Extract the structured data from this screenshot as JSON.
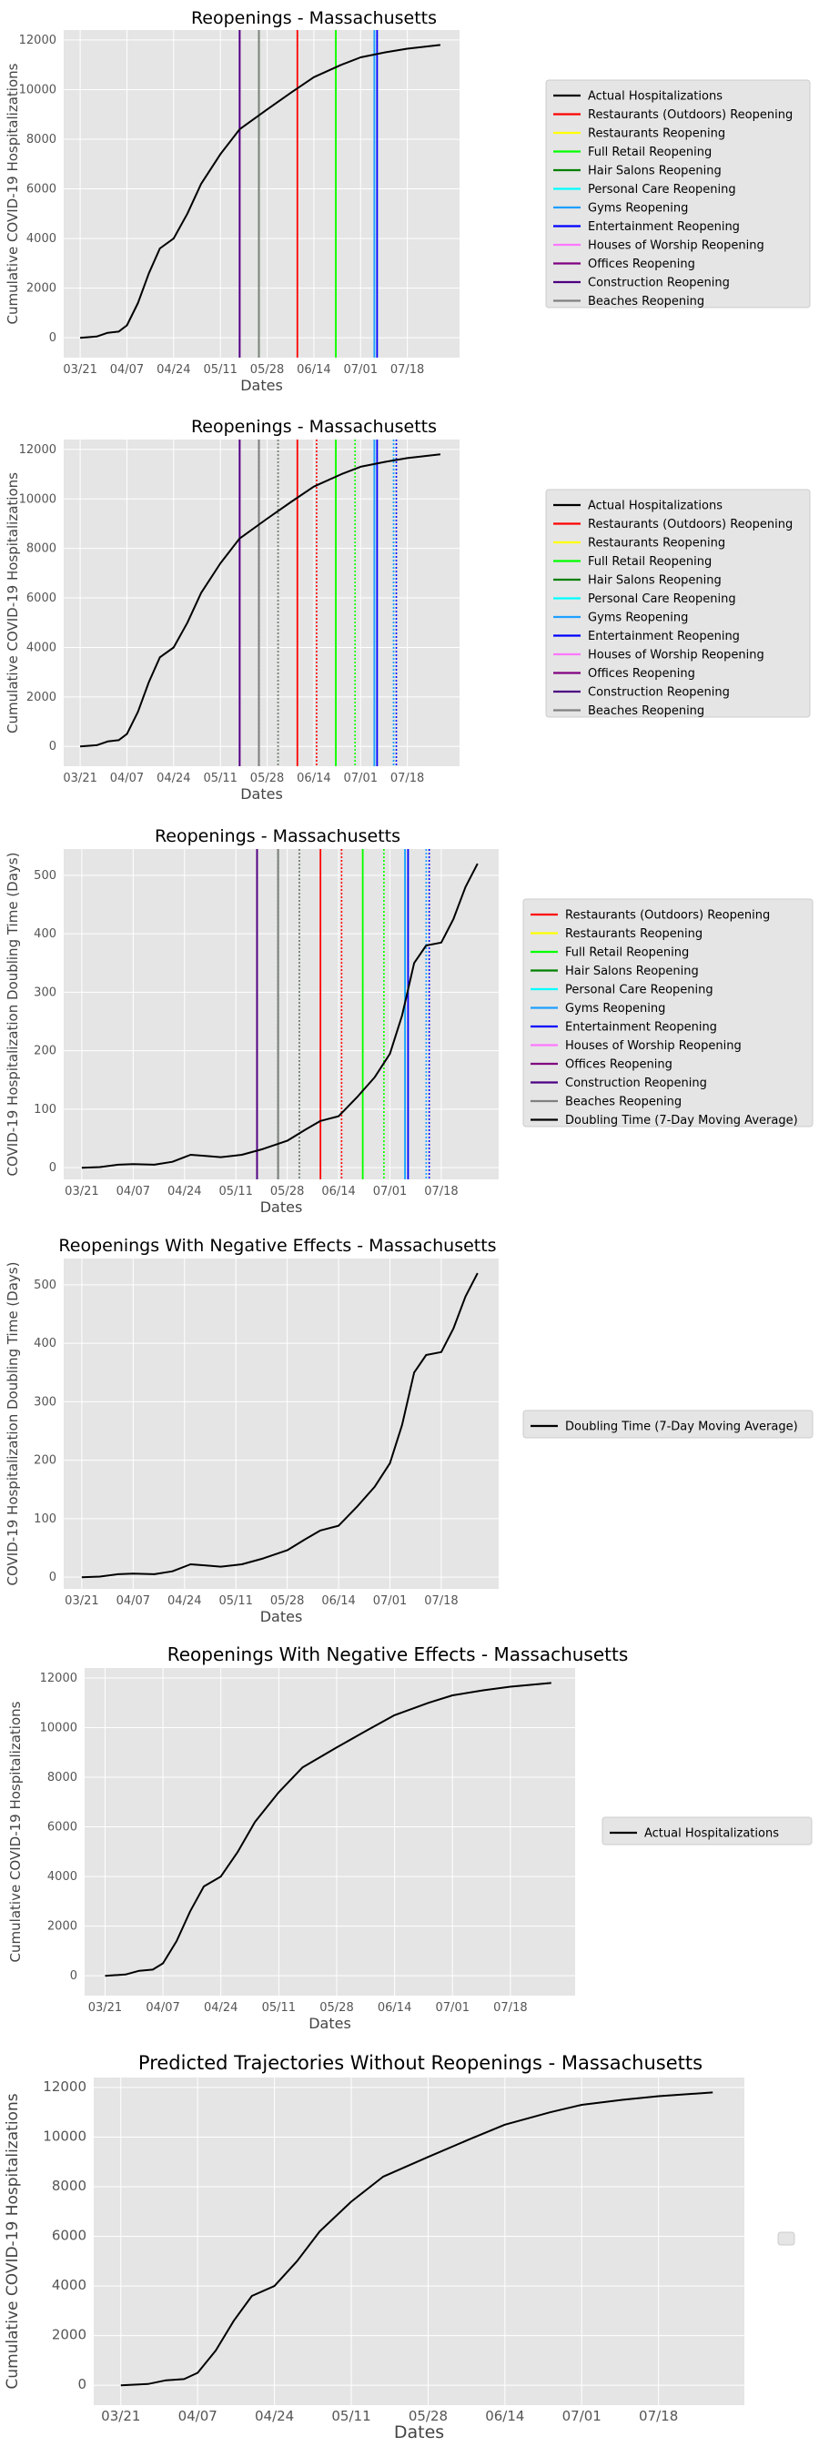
{
  "colors": {
    "panel_bg": "#e5e5e5",
    "grid": "#ffffff",
    "line": "#000000",
    "legend_bg": "#e5e5e5",
    "legend_border": "#cccccc"
  },
  "reopening_series": [
    {
      "name": "Restaurants (Outdoors) Reopening",
      "color": "#ff0000",
      "date": "2020-06-08"
    },
    {
      "name": "Restaurants Reopening",
      "color": "#ffff00",
      "date": "2020-06-22"
    },
    {
      "name": "Full Retail Reopening",
      "color": "#00ff00",
      "date": "2020-06-22"
    },
    {
      "name": "Hair Salons Reopening",
      "color": "#008000",
      "date": "2020-05-25"
    },
    {
      "name": "Personal Care Reopening",
      "color": "#00ffff",
      "date": "2020-07-06"
    },
    {
      "name": "Gyms Reopening",
      "color": "#1f9fff",
      "date": "2020-07-06"
    },
    {
      "name": "Entertainment Reopening",
      "color": "#0000ff",
      "date": "2020-07-07"
    },
    {
      "name": "Houses of Worship Reopening",
      "color": "#ff77ff",
      "date": "2020-05-18"
    },
    {
      "name": "Offices Reopening",
      "color": "#800080",
      "date": "2020-05-18"
    },
    {
      "name": "Construction Reopening",
      "color": "#4b0082",
      "date": "2020-05-18"
    },
    {
      "name": "Beaches Reopening",
      "color": "#808080",
      "date": "2020-05-25"
    }
  ],
  "chart_data": [
    {
      "type": "line",
      "title": "Reopenings - Massachusetts",
      "xlabel": "Dates",
      "ylabel": "Cumulative COVID-19 Hospitalizations",
      "xticks": [
        "03/21",
        "04/07",
        "04/24",
        "05/11",
        "05/28",
        "06/14",
        "07/01",
        "07/18"
      ],
      "yticks": [
        "0",
        "2000",
        "4000",
        "6000",
        "8000",
        "10000",
        "12000"
      ],
      "ylim": [
        -800,
        12400
      ],
      "legend_placement": "outside right",
      "series": [
        {
          "name": "Actual Hospitalizations",
          "color": "#000000",
          "x": [
            "2020-03-21",
            "2020-03-27",
            "2020-03-31",
            "2020-04-04",
            "2020-04-07",
            "2020-04-11",
            "2020-04-15",
            "2020-04-19",
            "2020-04-24",
            "2020-04-29",
            "2020-05-04",
            "2020-05-11",
            "2020-05-18",
            "2020-05-28",
            "2020-06-06",
            "2020-06-14",
            "2020-06-24",
            "2020-07-01",
            "2020-07-10",
            "2020-07-18",
            "2020-07-30"
          ],
          "values": [
            0,
            50,
            200,
            250,
            500,
            1400,
            2600,
            3600,
            4000,
            5000,
            6200,
            7400,
            8400,
            9200,
            9900,
            10500,
            11000,
            11300,
            11500,
            11650,
            11800
          ]
        }
      ],
      "vlines": {
        "source": "reopening_series",
        "solid_only": true
      }
    },
    {
      "type": "line",
      "title": "Reopenings - Massachusetts",
      "xlabel": "Dates",
      "ylabel": "Cumulative COVID-19 Hospitalizations",
      "xticks": [
        "03/21",
        "04/07",
        "04/24",
        "05/11",
        "05/28",
        "06/14",
        "07/01",
        "07/18"
      ],
      "yticks": [
        "0",
        "2000",
        "4000",
        "6000",
        "8000",
        "10000",
        "12000"
      ],
      "ylim": [
        -800,
        12400
      ],
      "legend_placement": "outside right",
      "series": [
        {
          "name": "Actual Hospitalizations",
          "color": "#000000",
          "x": [
            "2020-03-21",
            "2020-03-27",
            "2020-03-31",
            "2020-04-04",
            "2020-04-07",
            "2020-04-11",
            "2020-04-15",
            "2020-04-19",
            "2020-04-24",
            "2020-04-29",
            "2020-05-04",
            "2020-05-11",
            "2020-05-18",
            "2020-05-28",
            "2020-06-06",
            "2020-06-14",
            "2020-06-24",
            "2020-07-01",
            "2020-07-10",
            "2020-07-18",
            "2020-07-30"
          ],
          "values": [
            0,
            50,
            200,
            250,
            500,
            1400,
            2600,
            3600,
            4000,
            5000,
            6200,
            7400,
            8400,
            9200,
            9900,
            10500,
            11000,
            11300,
            11500,
            11650,
            11800
          ]
        }
      ],
      "vlines": {
        "source": "reopening_series",
        "solid_only": false
      }
    },
    {
      "type": "line",
      "title": "Reopenings - Massachusetts",
      "xlabel": "Dates",
      "ylabel": "COVID-19 Hospitalization Doubling Time (Days)",
      "xticks": [
        "03/21",
        "04/07",
        "04/24",
        "05/11",
        "05/28",
        "06/14",
        "07/01",
        "07/18"
      ],
      "yticks": [
        "0",
        "100",
        "200",
        "300",
        "400",
        "500"
      ],
      "ylim": [
        -20,
        545
      ],
      "legend_placement": "outside right",
      "series": [
        {
          "name": "Doubling Time (7-Day Moving Average)",
          "color": "#000000",
          "x": [
            "2020-03-21",
            "2020-03-27",
            "2020-04-02",
            "2020-04-07",
            "2020-04-14",
            "2020-04-20",
            "2020-04-26",
            "2020-05-01",
            "2020-05-06",
            "2020-05-13",
            "2020-05-20",
            "2020-05-28",
            "2020-06-03",
            "2020-06-08",
            "2020-06-14",
            "2020-06-20",
            "2020-06-26",
            "2020-07-01",
            "2020-07-05",
            "2020-07-09",
            "2020-07-13",
            "2020-07-18",
            "2020-07-22",
            "2020-07-26",
            "2020-07-30"
          ],
          "values": [
            0,
            1,
            5,
            6,
            5,
            10,
            22,
            20,
            18,
            22,
            32,
            46,
            65,
            80,
            88,
            120,
            155,
            195,
            260,
            350,
            380,
            385,
            425,
            480,
            520
          ]
        }
      ],
      "vlines": {
        "source": "reopening_series",
        "solid_only": false
      }
    },
    {
      "type": "line",
      "title": "Reopenings With Negative Effects - Massachusetts",
      "xlabel": "Dates",
      "ylabel": "COVID-19 Hospitalization Doubling Time (Days)",
      "xticks": [
        "03/21",
        "04/07",
        "04/24",
        "05/11",
        "05/28",
        "06/14",
        "07/01",
        "07/18"
      ],
      "yticks": [
        "0",
        "100",
        "200",
        "300",
        "400",
        "500"
      ],
      "ylim": [
        -20,
        545
      ],
      "legend_placement": "outside right",
      "series": [
        {
          "name": "Doubling Time (7-Day Moving Average)",
          "color": "#000000",
          "x": [
            "2020-03-21",
            "2020-03-27",
            "2020-04-02",
            "2020-04-07",
            "2020-04-14",
            "2020-04-20",
            "2020-04-26",
            "2020-05-01",
            "2020-05-06",
            "2020-05-13",
            "2020-05-20",
            "2020-05-28",
            "2020-06-03",
            "2020-06-08",
            "2020-06-14",
            "2020-06-20",
            "2020-06-26",
            "2020-07-01",
            "2020-07-05",
            "2020-07-09",
            "2020-07-13",
            "2020-07-18",
            "2020-07-22",
            "2020-07-26",
            "2020-07-30"
          ],
          "values": [
            0,
            1,
            5,
            6,
            5,
            10,
            22,
            20,
            18,
            22,
            32,
            46,
            65,
            80,
            88,
            120,
            155,
            195,
            260,
            350,
            380,
            385,
            425,
            480,
            520
          ]
        }
      ]
    },
    {
      "type": "line",
      "title": "Reopenings With Negative Effects - Massachusetts",
      "xlabel": "Dates",
      "ylabel": "Cumulative COVID-19 Hospitalizations",
      "xticks": [
        "03/21",
        "04/07",
        "04/24",
        "05/11",
        "05/28",
        "06/14",
        "07/01",
        "07/18"
      ],
      "yticks": [
        "0",
        "2000",
        "4000",
        "6000",
        "8000",
        "10000",
        "12000"
      ],
      "ylim": [
        -800,
        12400
      ],
      "legend_placement": "outside right",
      "series": [
        {
          "name": "Actual Hospitalizations",
          "color": "#000000",
          "x": [
            "2020-03-21",
            "2020-03-27",
            "2020-03-31",
            "2020-04-04",
            "2020-04-07",
            "2020-04-11",
            "2020-04-15",
            "2020-04-19",
            "2020-04-24",
            "2020-04-29",
            "2020-05-04",
            "2020-05-11",
            "2020-05-18",
            "2020-05-28",
            "2020-06-06",
            "2020-06-14",
            "2020-06-24",
            "2020-07-01",
            "2020-07-10",
            "2020-07-18",
            "2020-07-30"
          ],
          "values": [
            0,
            50,
            200,
            250,
            500,
            1400,
            2600,
            3600,
            4000,
            5000,
            6200,
            7400,
            8400,
            9200,
            9900,
            10500,
            11000,
            11300,
            11500,
            11650,
            11800
          ]
        }
      ]
    },
    {
      "type": "line",
      "title": "Predicted Trajectories Without Reopenings - Massachusetts",
      "xlabel": "Dates",
      "ylabel": "Cumulative COVID-19 Hospitalizations",
      "xticks": [
        "03/21",
        "04/07",
        "04/24",
        "05/11",
        "05/28",
        "06/14",
        "07/01",
        "07/18"
      ],
      "yticks": [
        "0",
        "2000",
        "4000",
        "6000",
        "8000",
        "10000",
        "12000"
      ],
      "ylim": [
        -800,
        12400
      ],
      "legend_placement": "outside right (empty)",
      "series": [
        {
          "color": "#000000",
          "x": [
            "2020-03-21",
            "2020-03-27",
            "2020-03-31",
            "2020-04-04",
            "2020-04-07",
            "2020-04-11",
            "2020-04-15",
            "2020-04-19",
            "2020-04-24",
            "2020-04-29",
            "2020-05-04",
            "2020-05-11",
            "2020-05-18",
            "2020-05-28",
            "2020-06-06",
            "2020-06-14",
            "2020-06-24",
            "2020-07-01",
            "2020-07-10",
            "2020-07-18",
            "2020-07-30"
          ],
          "values": [
            0,
            50,
            200,
            250,
            500,
            1400,
            2600,
            3600,
            4000,
            5000,
            6200,
            7400,
            8400,
            9200,
            9900,
            10500,
            11000,
            11300,
            11500,
            11650,
            11800
          ]
        }
      ]
    }
  ]
}
